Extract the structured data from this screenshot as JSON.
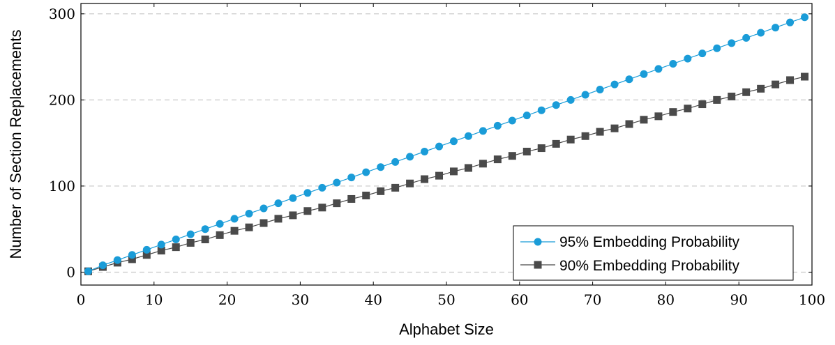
{
  "chart_data": {
    "type": "line",
    "title": "",
    "xlabel": "Alphabet Size",
    "ylabel": "Number of Section Replacements",
    "xlim": [
      0,
      100
    ],
    "ylim": [
      -15,
      312
    ],
    "xticks": [
      0,
      10,
      20,
      30,
      40,
      50,
      60,
      70,
      80,
      90,
      100
    ],
    "yticks": [
      0,
      100,
      200,
      300
    ],
    "grid": "horizontal dashed",
    "legend_position": "bottom-right",
    "series": [
      {
        "name": "95% Embedding Probability",
        "color": "#1a9cd8",
        "marker": "circle",
        "x": [
          1,
          3,
          5,
          7,
          9,
          11,
          13,
          15,
          17,
          19,
          21,
          23,
          25,
          27,
          29,
          31,
          33,
          35,
          37,
          39,
          41,
          43,
          45,
          47,
          49,
          51,
          53,
          55,
          57,
          59,
          61,
          63,
          65,
          67,
          69,
          71,
          73,
          75,
          77,
          79,
          81,
          83,
          85,
          87,
          89,
          91,
          93,
          95,
          97,
          99
        ],
        "y": [
          1,
          8,
          14,
          20,
          26,
          32,
          38,
          44,
          50,
          56,
          62,
          68,
          74,
          80,
          86,
          92,
          98,
          104,
          110,
          116,
          122,
          128,
          134,
          140,
          146,
          152,
          158,
          164,
          170,
          176,
          182,
          188,
          194,
          200,
          206,
          212,
          218,
          224,
          230,
          236,
          242,
          248,
          254,
          260,
          266,
          272,
          278,
          284,
          290,
          296
        ]
      },
      {
        "name": "90% Embedding Probability",
        "color": "#4a4a4a",
        "marker": "square",
        "x": [
          1,
          3,
          5,
          7,
          9,
          11,
          13,
          15,
          17,
          19,
          21,
          23,
          25,
          27,
          29,
          31,
          33,
          35,
          37,
          39,
          41,
          43,
          45,
          47,
          49,
          51,
          53,
          55,
          57,
          59,
          61,
          63,
          65,
          67,
          69,
          71,
          73,
          75,
          77,
          79,
          81,
          83,
          85,
          87,
          89,
          91,
          93,
          95,
          97,
          99
        ],
        "y": [
          1,
          6,
          11,
          15,
          20,
          25,
          29,
          34,
          38,
          43,
          48,
          52,
          57,
          62,
          66,
          71,
          75,
          80,
          85,
          89,
          94,
          98,
          103,
          108,
          112,
          117,
          121,
          126,
          131,
          135,
          140,
          144,
          149,
          154,
          158,
          163,
          167,
          172,
          177,
          181,
          186,
          190,
          195,
          200,
          204,
          209,
          213,
          218,
          223,
          227
        ]
      }
    ]
  }
}
